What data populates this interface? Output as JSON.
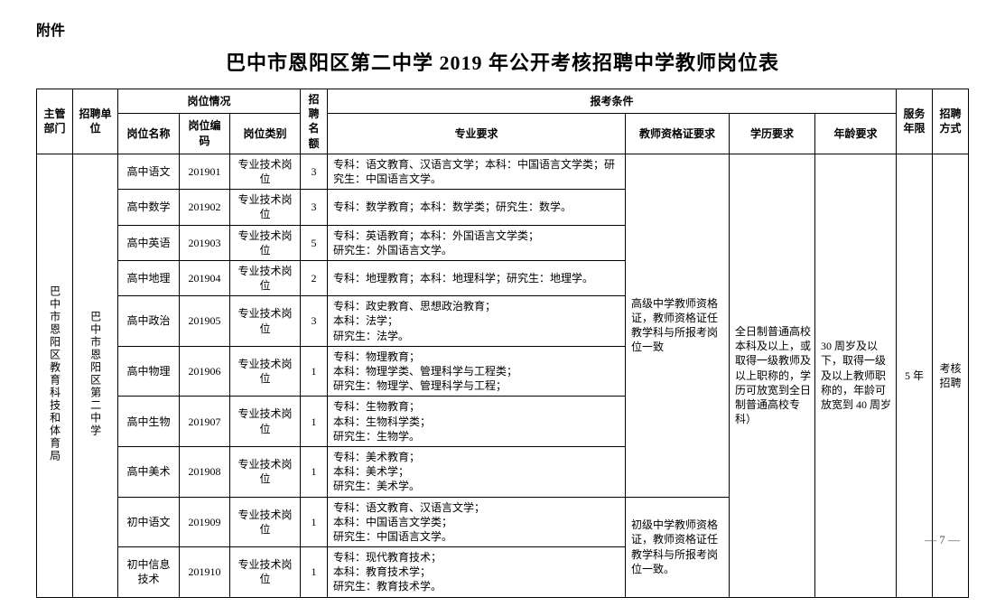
{
  "attachment_label": "附件",
  "title": "巴中市恩阳区第二中学 2019 年公开考核招聘中学教师岗位表",
  "page_number": "— 7 —",
  "headers": {
    "dept": "主管部门",
    "unit": "招聘单位",
    "post_group": "岗位情况",
    "post_name": "岗位名称",
    "post_code": "岗位编码",
    "post_type": "岗位类别",
    "quota": "招聘名额",
    "req_group": "报考条件",
    "major": "专业要求",
    "cert": "教师资格证要求",
    "edu": "学历要求",
    "age": "年龄要求",
    "years": "服务年限",
    "method": "招聘方式"
  },
  "dept": "巴中市恩阳区教育科技和体育局",
  "unit": "巴中市恩阳区第二中学",
  "cert_senior": "高级中学教师资格证，教师资格证任教学科与所报考岗位一致",
  "cert_junior": "初级中学教师资格证，教师资格证任教学科与所报考岗位一致。",
  "edu_req": "全日制普通高校本科及以上，或取得一级教师及以上职称的，学历可放宽到全日制普通高校专科）",
  "age_req": "30 周岁及以下，取得一级及以上教师职称的，年龄可放宽到 40 周岁",
  "service_years": "5 年",
  "recruit_method": "考核招聘",
  "rows": [
    {
      "name": "高中语文",
      "code": "201901",
      "type": "专业技术岗位",
      "quota": "3",
      "major": "专科：语文教育、汉语言文学；本科：中国语言文学类；研究生：中国语言文学。"
    },
    {
      "name": "高中数学",
      "code": "201902",
      "type": "专业技术岗位",
      "quota": "3",
      "major": "专科：数学教育；本科：数学类；研究生：数学。"
    },
    {
      "name": "高中英语",
      "code": "201903",
      "type": "专业技术岗位",
      "quota": "5",
      "major": "专科：英语教育；本科：外国语言文学类；\n研究生：外国语言文学。"
    },
    {
      "name": "高中地理",
      "code": "201904",
      "type": "专业技术岗位",
      "quota": "2",
      "major": "专科：地理教育；本科：地理科学；研究生：地理学。"
    },
    {
      "name": "高中政治",
      "code": "201905",
      "type": "专业技术岗位",
      "quota": "3",
      "major": "专科：政史教育、思想政治教育；\n本科：法学；\n研究生：法学。"
    },
    {
      "name": "高中物理",
      "code": "201906",
      "type": "专业技术岗位",
      "quota": "1",
      "major": "专科：物理教育；\n本科：物理学类、管理科学与工程类；\n研究生：物理学、管理科学与工程；"
    },
    {
      "name": "高中生物",
      "code": "201907",
      "type": "专业技术岗位",
      "quota": "1",
      "major": "专科：生物教育；\n本科：生物科学类；\n研究生：生物学。"
    },
    {
      "name": "高中美术",
      "code": "201908",
      "type": "专业技术岗位",
      "quota": "1",
      "major": "专科：美术教育；\n本科：美术学；\n研究生：美术学。"
    },
    {
      "name": "初中语文",
      "code": "201909",
      "type": "专业技术岗位",
      "quota": "1",
      "major": "专科：语文教育、汉语言文学；\n本科：中国语言文学类；\n研究生：中国语言文学。"
    },
    {
      "name": "初中信息技术",
      "code": "201910",
      "type": "专业技术岗位",
      "quota": "1",
      "major": "专科：现代教育技术；\n本科：教育技术学；\n研究生：教育技术学。"
    }
  ]
}
